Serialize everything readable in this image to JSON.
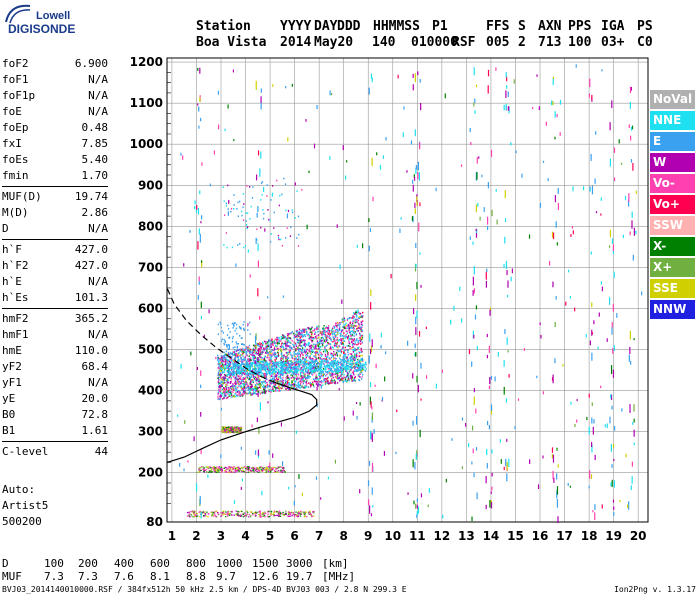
{
  "logo": {
    "line1": "Lowell",
    "line2": "DIGISONDE"
  },
  "header": {
    "columns": [
      "Station",
      "YYYY",
      "DAY",
      "DDD",
      "HHMMSS",
      "P1",
      "FFS",
      "S",
      "AXN",
      "PPS",
      "IGA",
      "PS"
    ],
    "values": [
      "Boa Vista",
      "2014",
      "May20",
      "140",
      "010000",
      "RSF",
      "005",
      "2",
      "713",
      "100",
      "03+",
      "C0"
    ]
  },
  "params": [
    {
      "label": "foF2",
      "value": "6.900"
    },
    {
      "label": "foF1",
      "value": "N/A"
    },
    {
      "label": "foF1p",
      "value": "N/A"
    },
    {
      "label": "foE",
      "value": "N/A"
    },
    {
      "label": "foEp",
      "value": "0.48"
    },
    {
      "label": "fxI",
      "value": "7.85"
    },
    {
      "label": "foEs",
      "value": "5.40"
    },
    {
      "label": "fmin",
      "value": "1.70"
    },
    {
      "sep": true
    },
    {
      "label": "MUF(D)",
      "value": "19.74"
    },
    {
      "label": "M(D)",
      "value": "2.86"
    },
    {
      "label": "D",
      "value": "N/A"
    },
    {
      "sep": true
    },
    {
      "label": "h`F",
      "value": "427.0"
    },
    {
      "label": "h`F2",
      "value": "427.0"
    },
    {
      "label": "h`E",
      "value": "N/A"
    },
    {
      "label": "h`Es",
      "value": "101.3"
    },
    {
      "sep": true
    },
    {
      "label": "hmF2",
      "value": "365.2"
    },
    {
      "label": "hmF1",
      "value": "N/A"
    },
    {
      "label": "hmE",
      "value": "110.0"
    },
    {
      "label": "yF2",
      "value": "68.4"
    },
    {
      "label": "yF1",
      "value": "N/A"
    },
    {
      "label": "yE",
      "value": "20.0"
    },
    {
      "label": "B0",
      "value": "72.8"
    },
    {
      "label": "B1",
      "value": "1.61"
    },
    {
      "sep": true
    },
    {
      "label": "C-level",
      "value": "44"
    }
  ],
  "auto": [
    "Auto:",
    "Artist5",
    "500200"
  ],
  "legend": [
    {
      "label": "NoVal",
      "color": "#b0b0b0"
    },
    {
      "label": "NNE",
      "color": "#1ee0f0"
    },
    {
      "label": "E",
      "color": "#3aa0f0"
    },
    {
      "label": "W",
      "color": "#b000b0"
    },
    {
      "label": "Vo-",
      "color": "#ff40b0"
    },
    {
      "label": "Vo+",
      "color": "#ff0050"
    },
    {
      "label": "SSW",
      "color": "#ffb0b0"
    },
    {
      "label": "X-",
      "color": "#008000"
    },
    {
      "label": "X+",
      "color": "#70b040"
    },
    {
      "label": "SSE",
      "color": "#d0d000"
    },
    {
      "label": "NNW",
      "color": "#2020e0"
    }
  ],
  "dmuf": {
    "d_label": "D",
    "d_values": [
      "100",
      "200",
      "400",
      "600",
      "800",
      "1000",
      "1500",
      "3000"
    ],
    "d_unit": "[km]",
    "muf_label": "MUF",
    "muf_values": [
      "7.3",
      "7.3",
      "7.6",
      "8.1",
      "8.8",
      "9.7",
      "12.6",
      "19.7"
    ],
    "muf_unit": "[MHz]"
  },
  "footer": "BVJ03_2014140010000.RSF / 384fx512h 50 kHz 2.5 km / DPS-4D BVJ03 003 / 2.8 N 299.3 E",
  "version": "Ion2Png v. 1.3.17",
  "chart_data": {
    "type": "scatter",
    "x_ticks": [
      1,
      2,
      3,
      4,
      5,
      6,
      7,
      8,
      9,
      10,
      11,
      12,
      13,
      14,
      15,
      16,
      17,
      18,
      19,
      20
    ],
    "y_ticks": [
      80,
      200,
      300,
      400,
      500,
      600,
      700,
      800,
      900,
      1000,
      1100,
      1200
    ],
    "xlim": [
      0.8,
      20.4
    ],
    "ylim": [
      80,
      1210
    ],
    "grid": true,
    "profile": {
      "x": [
        0.8,
        1.5,
        2.2,
        3.0,
        4.0,
        5.0,
        6.0,
        6.6,
        6.9,
        6.9,
        6.7,
        6.3,
        5.8,
        5.2,
        4.6,
        4.0,
        3.4,
        2.8,
        2.2,
        1.6,
        1.1,
        0.8
      ],
      "y": [
        225,
        238,
        258,
        280,
        300,
        318,
        335,
        350,
        365,
        378,
        390,
        398,
        407,
        420,
        435,
        455,
        480,
        505,
        535,
        570,
        610,
        650
      ],
      "dashed_from_index": 13
    }
  }
}
